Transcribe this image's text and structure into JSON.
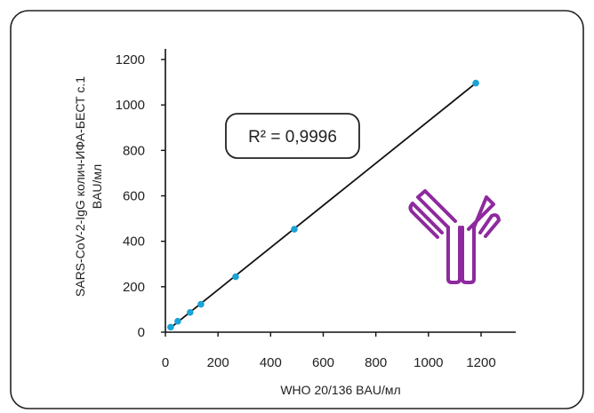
{
  "chart_data": {
    "type": "scatter",
    "xlabel": "WHO 20/136 BAU/мл",
    "ylabel_line1": "SARS-CoV-2-IgG колич-ИФА-БЕСТ с.1",
    "ylabel_line2": "BAU/мл",
    "xlim": [
      0,
      1300
    ],
    "ylim": [
      0,
      1250
    ],
    "x_ticks": [
      0,
      200,
      400,
      600,
      800,
      1000,
      1200
    ],
    "y_ticks": [
      0,
      200,
      400,
      600,
      800,
      1000,
      1200
    ],
    "x_tick_labels": [
      "0",
      "200",
      "400",
      "600",
      "800",
      "1000",
      "1200"
    ],
    "y_tick_labels": [
      "0",
      "200",
      "400",
      "600",
      "800",
      "1000",
      "1200"
    ],
    "points": [
      {
        "x": 20,
        "y": 22
      },
      {
        "x": 47,
        "y": 48
      },
      {
        "x": 94,
        "y": 87
      },
      {
        "x": 135,
        "y": 123
      },
      {
        "x": 267,
        "y": 244
      },
      {
        "x": 490,
        "y": 453
      },
      {
        "x": 1180,
        "y": 1096
      }
    ],
    "fit_line": {
      "x": [
        15,
        1180
      ],
      "y": [
        15,
        1096
      ]
    },
    "annotation": "R² = 0,9996",
    "grid": false,
    "colors": {
      "points": "#1aa3d6",
      "line": "#111111",
      "icon": "#8e2a9e",
      "frame": "#222222"
    },
    "icon": "antibody-icon"
  }
}
